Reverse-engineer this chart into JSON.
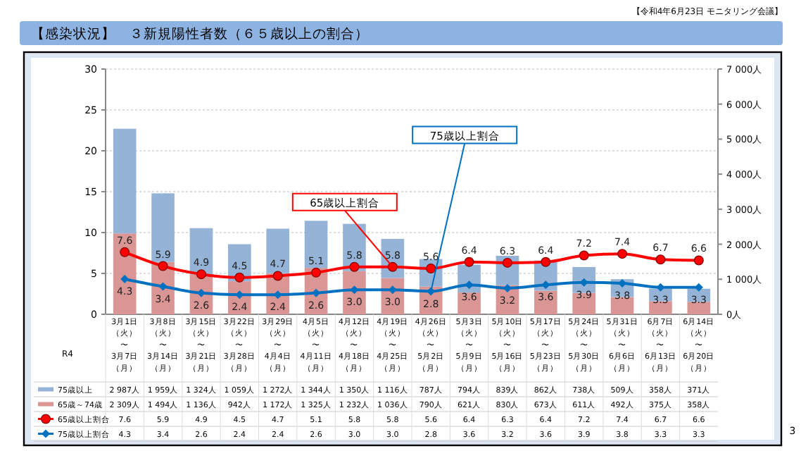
{
  "chart_data": {
    "type": "bar",
    "title": "【感染状況】　３新規陽性者数（６５歳以上の割合）",
    "annotations": [
      "【令和4年6月23日 モニタリング会議】",
      "R4",
      "3",
      {
        "text": "65歳以上割合",
        "x": "4月19日（火）〜4月25日（月）",
        "y": 5.8
      },
      {
        "text": "75歳以上割合",
        "x": "4月26日（火）〜5月2日（月）",
        "y": 2.8
      }
    ],
    "categories": [
      "3月1日（火）〜3月7日（月）",
      "3月8日（火）〜3月14日（月）",
      "3月15日（火）〜3月21日（月）",
      "3月22日（火）〜3月28日（月）",
      "3月29日（火）〜4月4日（月）",
      "4月5日（火）〜4月11日（月）",
      "4月12日（火）〜4月18日（月）",
      "4月19日（火）〜4月25日（月）",
      "4月26日（火）〜5月2日（月）",
      "5月3日（火）〜5月9日（月）",
      "5月10日（火）〜5月16日（月）",
      "5月17日（火）〜5月23日（月）",
      "5月24日（火）〜5月30日（月）",
      "5月31日（火）〜6月6日（月）",
      "6月7日（火）〜6月13日（月）",
      "6月14日（火）〜6月20日（月）"
    ],
    "stacked": true,
    "grid": "y",
    "legend": "bottom",
    "ylim": [
      0,
      30
    ],
    "yticks": [
      0,
      5,
      10,
      15,
      20,
      25,
      30
    ],
    "y2lim": [
      0,
      7000
    ],
    "y2ticks": [
      {
        "value": 0,
        "label": "0人"
      },
      {
        "value": 1000,
        "label": "1 000人"
      },
      {
        "value": 2000,
        "label": "2 000人"
      },
      {
        "value": 3000,
        "label": "3 000人"
      },
      {
        "value": 4000,
        "label": "4 000人"
      },
      {
        "value": 5000,
        "label": "5 000人"
      },
      {
        "value": 6000,
        "label": "6 000人"
      },
      {
        "value": 7000,
        "label": "7 000人"
      }
    ],
    "series": [
      {
        "name": "65歳～74歳",
        "axis": "y2",
        "color": "#d99694",
        "values": [
          2309,
          1494,
          1136,
          942,
          1172,
          1325,
          1232,
          1036,
          790,
          621,
          830,
          673,
          611,
          492,
          375,
          358
        ],
        "value_labels": [
          "2 309人",
          "1 494人",
          "1 136人",
          "942人",
          "1 172人",
          "1 325人",
          "1 232人",
          "1 036人",
          "790人",
          "621人",
          "830人",
          "673人",
          "611人",
          "492人",
          "375人",
          "358人"
        ]
      },
      {
        "name": "75歳以上",
        "axis": "y2",
        "color": "#95b3d7",
        "values": [
          2987,
          1959,
          1324,
          1059,
          1272,
          1344,
          1350,
          1116,
          787,
          794,
          839,
          862,
          738,
          509,
          358,
          371
        ],
        "value_labels": [
          "2 987人",
          "1 959人",
          "1 324人",
          "1 059人",
          "1 272人",
          "1 344人",
          "1 350人",
          "1 116人",
          "787人",
          "794人",
          "839人",
          "862人",
          "738人",
          "509人",
          "358人",
          "371人"
        ]
      },
      {
        "name": "65歳以上割合",
        "type": "line",
        "color": "#ff0000",
        "marker": "circle",
        "values": [
          7.6,
          5.9,
          4.9,
          4.5,
          4.7,
          5.1,
          5.8,
          5.8,
          5.6,
          6.4,
          6.3,
          6.4,
          7.2,
          7.4,
          6.7,
          6.6
        ],
        "value_labels": [
          "7.6",
          "5.9",
          "4.9",
          "4.5",
          "4.7",
          "5.1",
          "5.8",
          "5.8",
          "5.6",
          "6.4",
          "6.3",
          "6.4",
          "7.2",
          "7.4",
          "6.7",
          "6.6"
        ]
      },
      {
        "name": "75歳以上割合",
        "type": "line",
        "color": "#0070c0",
        "marker": "diamond",
        "values": [
          4.3,
          3.4,
          2.6,
          2.4,
          2.4,
          2.6,
          3.0,
          3.0,
          2.8,
          3.6,
          3.2,
          3.6,
          3.9,
          3.8,
          3.3,
          3.3
        ],
        "value_labels": [
          "4.3",
          "3.4",
          "2.6",
          "2.4",
          "2.4",
          "2.6",
          "3.0",
          "3.0",
          "2.8",
          "3.6",
          "3.2",
          "3.6",
          "3.9",
          "3.8",
          "3.3",
          "3.3"
        ]
      }
    ]
  }
}
